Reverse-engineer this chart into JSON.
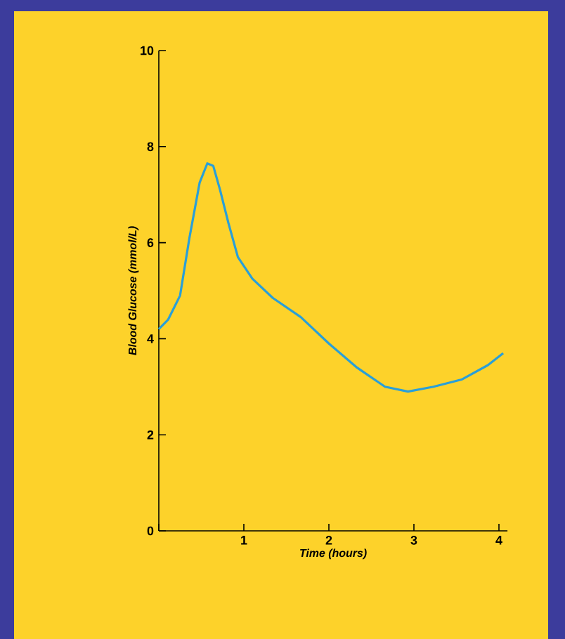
{
  "chart_data": {
    "type": "line",
    "xlabel": "Time (hours)",
    "ylabel": "Blood Glucose (mmol/L)",
    "x": [
      0,
      0.11,
      0.25,
      0.36,
      0.48,
      0.57,
      0.64,
      0.72,
      0.82,
      0.93,
      1.1,
      1.34,
      1.67,
      2.0,
      2.33,
      2.66,
      2.93,
      3.23,
      3.56,
      3.87,
      4.05
    ],
    "values": [
      4.2,
      4.4,
      4.9,
      6.1,
      7.25,
      7.65,
      7.6,
      7.1,
      6.4,
      5.7,
      5.25,
      4.85,
      4.45,
      3.9,
      3.4,
      3.0,
      2.9,
      3.0,
      3.15,
      3.45,
      3.7
    ],
    "color": "#2a9fd8",
    "xlim": [
      0,
      4.1
    ],
    "ylim": [
      0,
      10
    ],
    "xticks": [
      {
        "value": 0,
        "label": null
      },
      1,
      2,
      3,
      4
    ],
    "yticks": [
      0,
      2,
      4,
      6,
      8,
      10
    ]
  }
}
